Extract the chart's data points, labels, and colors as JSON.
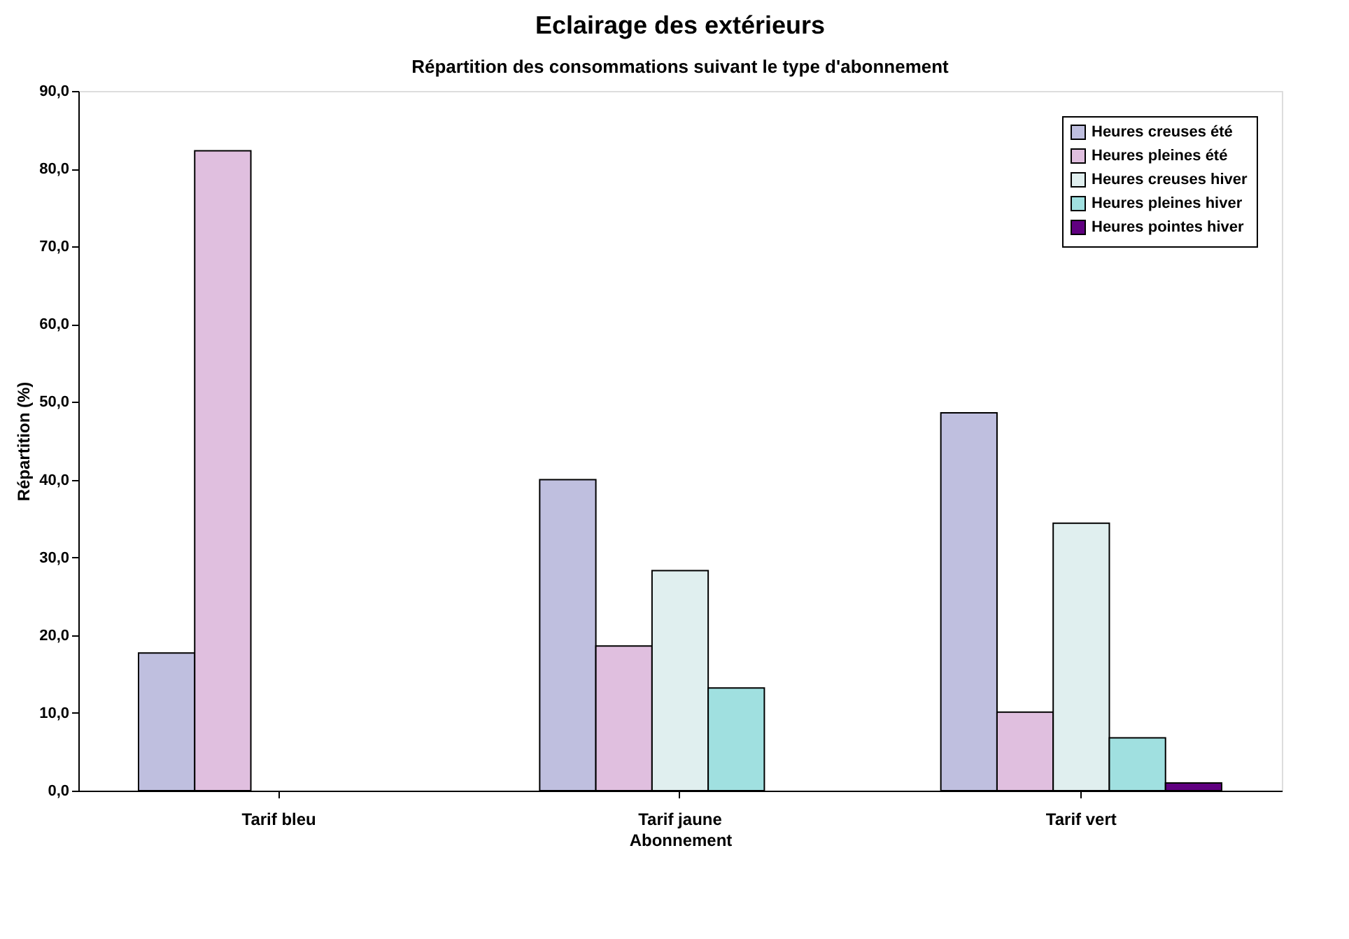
{
  "chart_data": {
    "type": "bar",
    "title": "Eclairage des extérieurs",
    "subtitle": "Répartition des consommations suivant le type d'abonnement",
    "xlabel": "Abonnement",
    "ylabel": "Répartition (%)",
    "categories": [
      "Tarif bleu",
      "Tarif jaune",
      "Tarif vert"
    ],
    "series": [
      {
        "name": "Heures creuses été",
        "color": "#bfbfdf",
        "values": [
          17.7,
          40.0,
          48.6
        ]
      },
      {
        "name": "Heures pleines été",
        "color": "#e0bfdf",
        "values": [
          82.3,
          18.6,
          10.1
        ]
      },
      {
        "name": "Heures creuses hiver",
        "color": "#e0efef",
        "values": [
          null,
          28.3,
          34.4
        ]
      },
      {
        "name": "Heures pleines hiver",
        "color": "#a0e0e0",
        "values": [
          null,
          13.2,
          6.8
        ]
      },
      {
        "name": "Heures pointes hiver",
        "color": "#600080",
        "values": [
          null,
          null,
          1.0
        ]
      }
    ],
    "ylim": [
      0,
      90
    ],
    "yticks": [
      {
        "value": 0,
        "label": "0,0"
      },
      {
        "value": 10,
        "label": "10,0"
      },
      {
        "value": 20,
        "label": "20,0"
      },
      {
        "value": 30,
        "label": "30,0"
      },
      {
        "value": 40,
        "label": "40,0"
      },
      {
        "value": 50,
        "label": "50,0"
      },
      {
        "value": 60,
        "label": "60,0"
      },
      {
        "value": 70,
        "label": "70,0"
      },
      {
        "value": 80,
        "label": "80,0"
      },
      {
        "value": 90,
        "label": "90,0"
      }
    ],
    "grid": false,
    "legend": "top right"
  }
}
